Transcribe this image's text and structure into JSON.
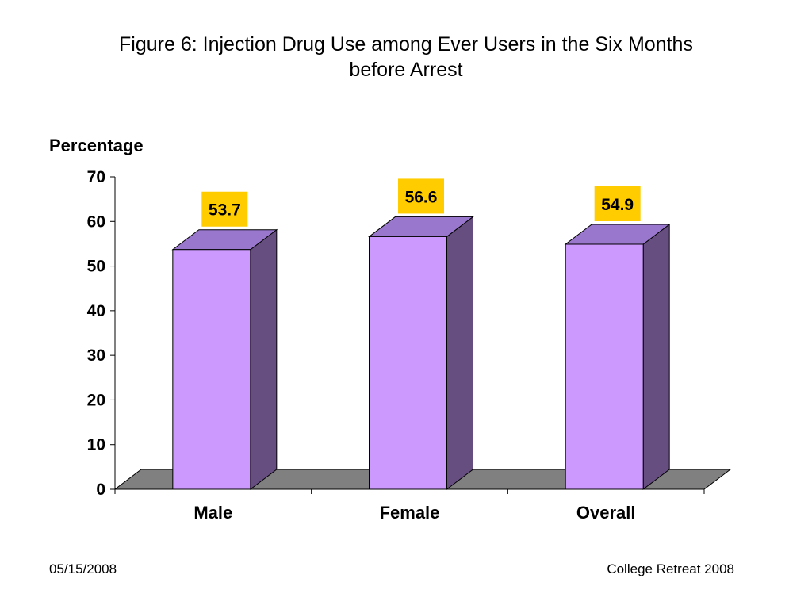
{
  "chart_data": {
    "type": "bar",
    "title": "Figure 6: Injection Drug Use among Ever Users in the Six Months before Arrest",
    "title_lines": [
      "Figure 6: Injection Drug Use among Ever Users in the Six Months",
      "before Arrest"
    ],
    "ylabel": "Percentage",
    "xlabel": "",
    "categories": [
      "Male",
      "Female",
      "Overall"
    ],
    "values": [
      53.7,
      56.6,
      54.9
    ],
    "value_labels": [
      "53.7",
      "56.6",
      "54.9"
    ],
    "ylim": [
      0,
      70
    ],
    "yticks": [
      0,
      10,
      20,
      30,
      40,
      50,
      60,
      70
    ],
    "grid": false,
    "legend": "none",
    "bar_color": "#cc99ff",
    "bar_side_color": "#664e80",
    "bar_top_color": "#9977cc",
    "floor_color": "#808080",
    "label_box_color": "#ffcc00"
  },
  "footer": {
    "date": "05/15/2008",
    "event": "College Retreat 2008"
  }
}
